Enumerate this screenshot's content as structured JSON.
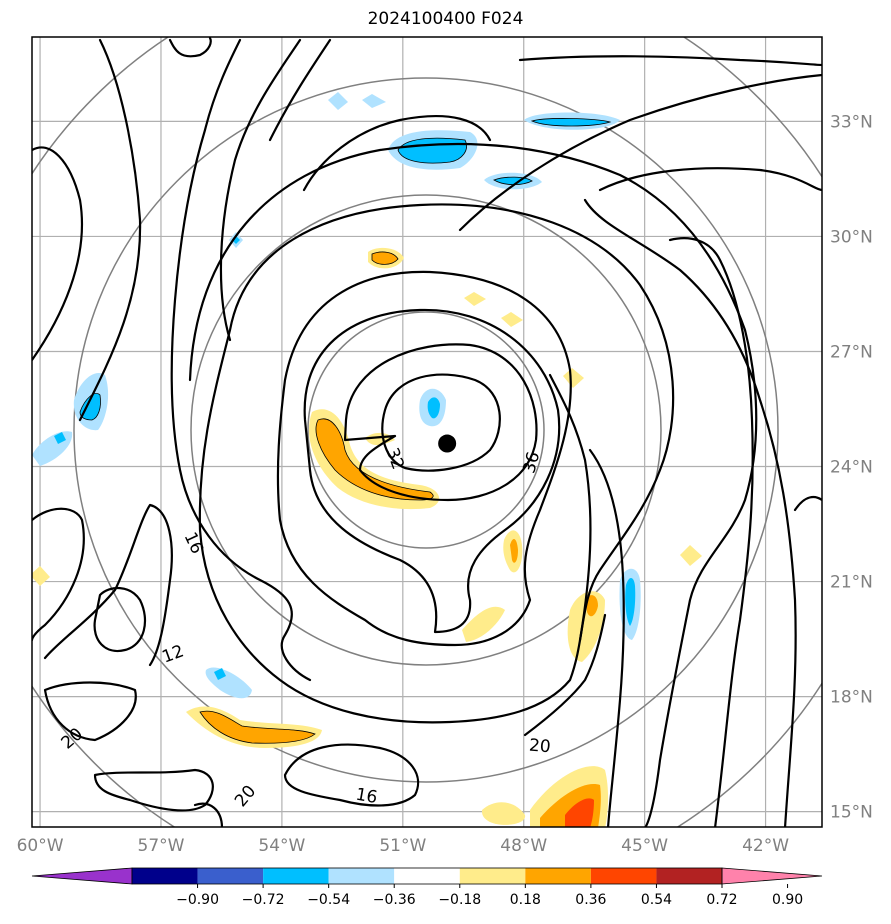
{
  "title": "2024100400 F024",
  "map": {
    "lon_range": [
      -60.2,
      -40.6
    ],
    "lat_range": [
      14.6,
      35.2
    ],
    "lon_ticks": [
      -60,
      -57,
      -54,
      -51,
      -48,
      -45,
      -42
    ],
    "lon_tick_labels": [
      "60°W",
      "57°W",
      "54°W",
      "51°W",
      "48°W",
      "45°W",
      "42°W"
    ],
    "lat_ticks": [
      15,
      18,
      21,
      24,
      27,
      30,
      33
    ],
    "lat_tick_labels": [
      "15°N",
      "18°N",
      "21°N",
      "24°N",
      "27°N",
      "30°N",
      "33°N"
    ],
    "grid": true,
    "center_marker": {
      "lon": -49.9,
      "lat": 24.6,
      "color": "#000000"
    },
    "contour_labels": [
      {
        "text": "32",
        "lon": -51.2,
        "lat": 24.2,
        "rotate": 70
      },
      {
        "text": "36",
        "lon": -47.8,
        "lat": 24.1,
        "rotate": -75
      },
      {
        "text": "16",
        "lon": -56.2,
        "lat": 22.0,
        "rotate": 65
      },
      {
        "text": "12",
        "lon": -56.7,
        "lat": 19.1,
        "rotate": -20
      },
      {
        "text": "20",
        "lon": -59.2,
        "lat": 16.9,
        "rotate": -40
      },
      {
        "text": "20",
        "lon": -54.9,
        "lat": 15.4,
        "rotate": -50
      },
      {
        "text": "16",
        "lon": -51.9,
        "lat": 15.4,
        "rotate": 10
      },
      {
        "text": "20",
        "lon": -47.6,
        "lat": 16.7,
        "rotate": 5
      }
    ]
  },
  "colorbar": {
    "levels": [
      "−0.90",
      "−0.72",
      "−0.54",
      "−0.36",
      "−0.18",
      "0.18",
      "0.36",
      "0.54",
      "0.72",
      "0.90"
    ],
    "colors": [
      "#9932cc",
      "#00008b",
      "#3a5fcd",
      "#00bfff",
      "#b0e2ff",
      "#ffffff",
      "#ffec8b",
      "#ffa500",
      "#ff4500",
      "#b22222",
      "#ff82ab"
    ],
    "extend": "both"
  }
}
